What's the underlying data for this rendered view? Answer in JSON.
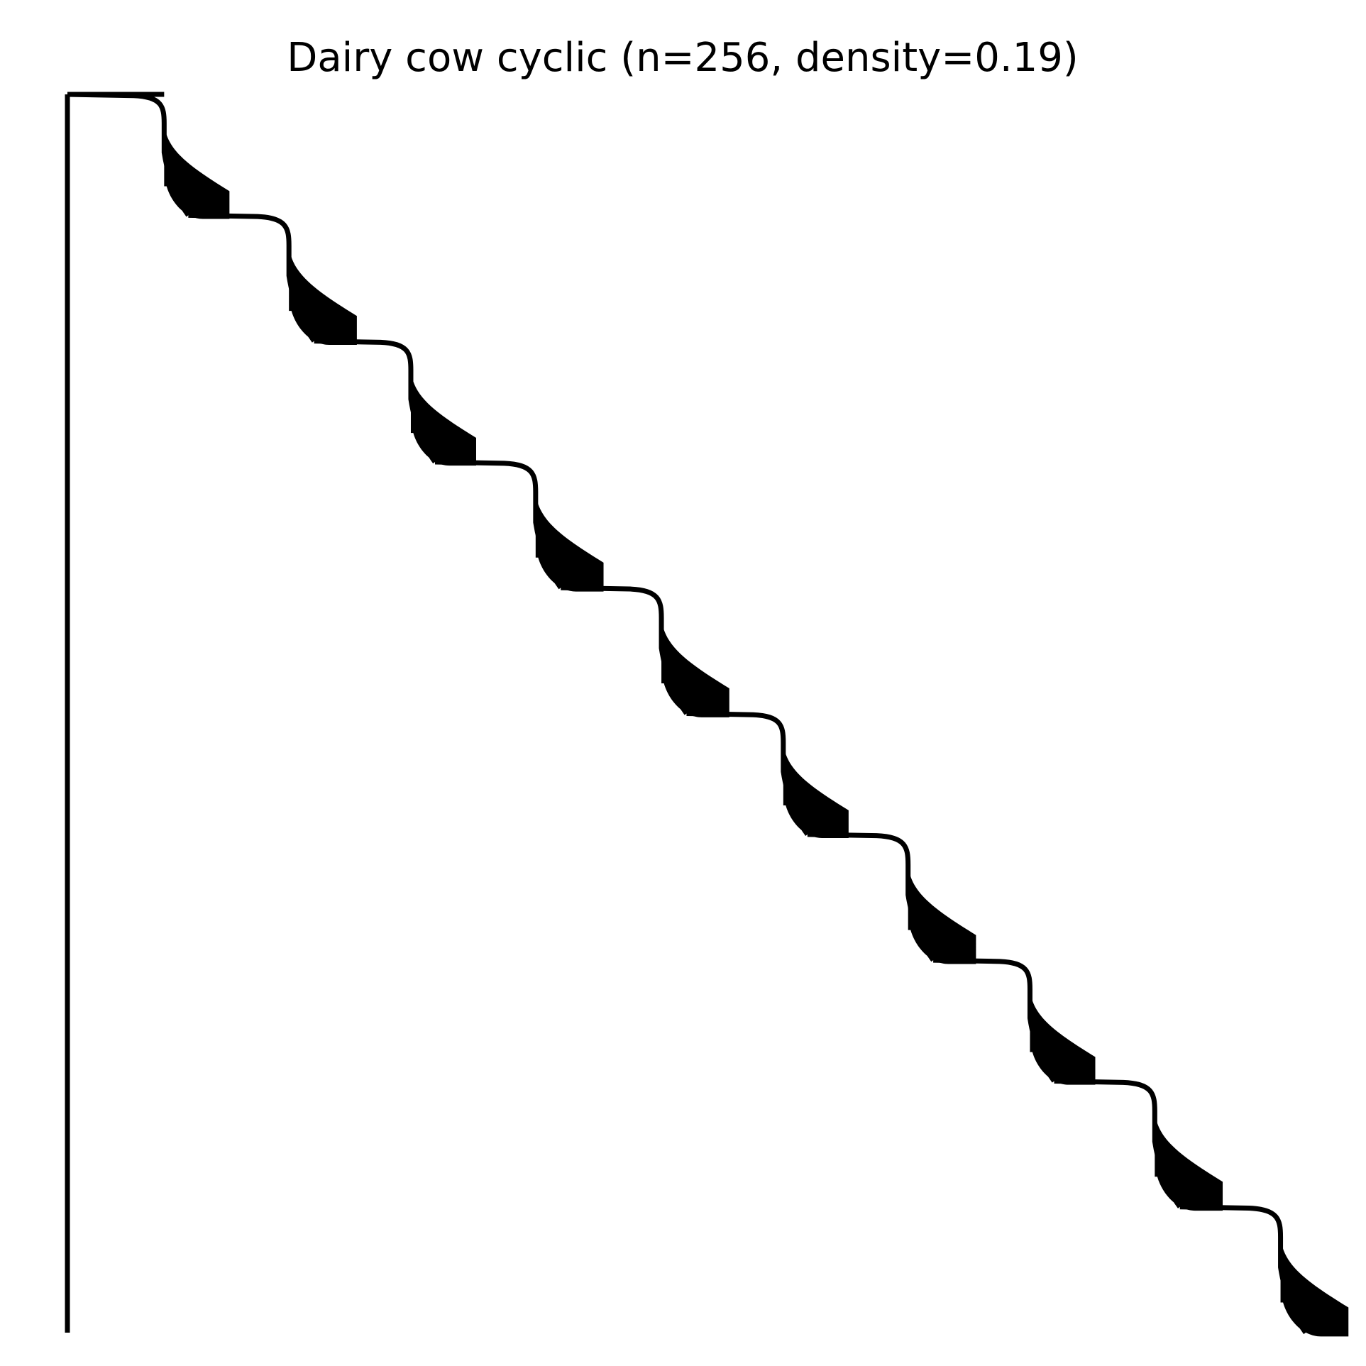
{
  "chart_data": {
    "type": "heatmap",
    "subtype": "sparsity-pattern",
    "title": "Dairy cow cyclic (n=256, density=0.19)",
    "n": 256,
    "density": 0.19,
    "axes_visible": false,
    "grid": false,
    "legend": "none",
    "colors": {
      "nonzero": "#000000",
      "background": "#ffffff"
    },
    "diagonal_blocks": [
      {
        "index": 1,
        "rows": [
          0,
          25
        ]
      },
      {
        "index": 2,
        "rows": [
          25,
          51
        ]
      },
      {
        "index": 3,
        "rows": [
          51,
          76
        ]
      },
      {
        "index": 4,
        "rows": [
          76,
          102
        ]
      },
      {
        "index": 5,
        "rows": [
          102,
          128
        ]
      },
      {
        "index": 6,
        "rows": [
          128,
          153
        ]
      },
      {
        "index": 7,
        "rows": [
          153,
          179
        ]
      },
      {
        "index": 8,
        "rows": [
          179,
          204
        ]
      },
      {
        "index": 9,
        "rows": [
          204,
          230
        ]
      },
      {
        "index": 10,
        "rows": [
          230,
          256
        ]
      }
    ],
    "corner_links": [
      {
        "name": "top-left-corner-link",
        "row": 0,
        "cols": [
          0,
          20
        ]
      },
      {
        "name": "left-column-corner-link",
        "col": 0,
        "rows": [
          0,
          256
        ]
      }
    ]
  }
}
